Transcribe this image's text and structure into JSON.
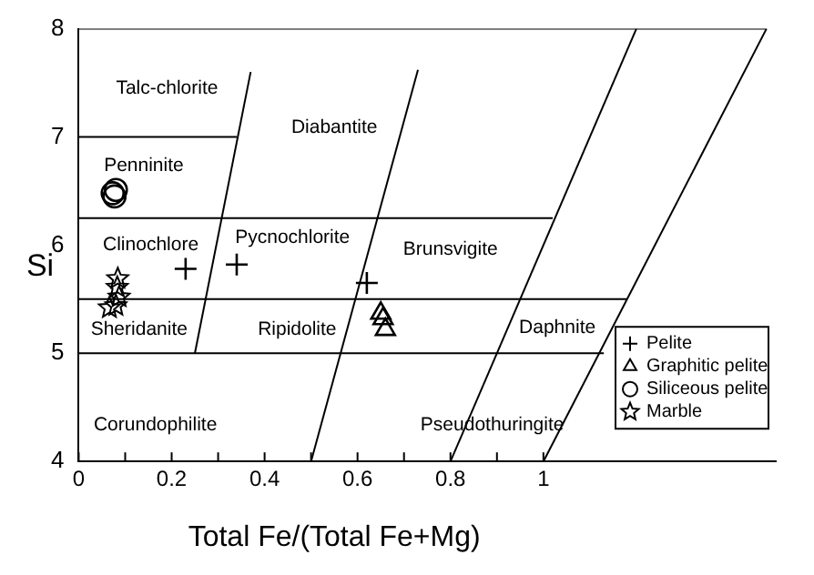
{
  "chart_data": {
    "type": "scatter",
    "xlabel": "Total Fe/(Total Fe+Mg)",
    "ylabel": "Si",
    "xlim": [
      0,
      1.5
    ],
    "ylim": [
      4,
      8
    ],
    "xticks": [
      0,
      {
        "value": 0.1,
        "label": null
      },
      0.2,
      {
        "value": 0.3,
        "label": null
      },
      0.4,
      {
        "value": 0.5,
        "label": null
      },
      0.6,
      {
        "value": 0.7,
        "label": null
      },
      0.8,
      {
        "value": 0.9,
        "label": null
      },
      1
    ],
    "yticks": [
      4,
      5,
      6,
      7,
      8
    ],
    "grid": false,
    "legend": "bottom right",
    "series": [
      {
        "name": "Pelite",
        "marker": "cross",
        "color": "#000000",
        "x": [
          0.23,
          0.34,
          0.62
        ],
        "values": [
          5.78,
          5.82,
          5.65
        ]
      },
      {
        "name": "Graphitic pelite",
        "marker": "triangle",
        "color": "#000000",
        "x": [
          0.65,
          0.655,
          0.66
        ],
        "values": [
          5.37,
          5.32,
          5.22
        ]
      },
      {
        "name": "Siliceous pelite",
        "marker": "circle",
        "color": "#000000",
        "x": [
          0.073,
          0.08,
          0.077
        ],
        "values": [
          6.48,
          6.51,
          6.45
        ]
      },
      {
        "name": "Marble",
        "marker": "star",
        "color": "#000000",
        "x": [
          0.084,
          0.083,
          0.087,
          0.08,
          0.066
        ],
        "values": [
          5.69,
          5.61,
          5.52,
          5.44,
          5.42
        ]
      },
      {
        "type": "line",
        "marker": "none",
        "color": "#000000",
        "x": [
          0,
          1.48
        ],
        "values": [
          8,
          8
        ]
      },
      {
        "type": "line",
        "marker": "none",
        "color": "#000000",
        "x": [
          0,
          0.34
        ],
        "values": [
          7,
          7
        ]
      },
      {
        "type": "line",
        "marker": "none",
        "color": "#000000",
        "x": [
          0,
          1.02
        ],
        "values": [
          6.25,
          6.25
        ]
      },
      {
        "type": "line",
        "marker": "none",
        "color": "#000000",
        "x": [
          0,
          1.18
        ],
        "values": [
          5.5,
          5.5
        ]
      },
      {
        "type": "line",
        "marker": "none",
        "color": "#000000",
        "x": [
          0,
          1.13
        ],
        "values": [
          5,
          5
        ]
      },
      {
        "type": "line",
        "marker": "none",
        "color": "#000000",
        "x": [
          0.25,
          0.37
        ],
        "values": [
          5,
          7.6
        ]
      },
      {
        "type": "line",
        "marker": "none",
        "color": "#000000",
        "x": [
          0.5,
          0.73
        ],
        "values": [
          4,
          7.62
        ]
      },
      {
        "type": "line",
        "marker": "none",
        "color": "#000000",
        "x": [
          0.8,
          1.2
        ],
        "values": [
          4,
          8
        ]
      },
      {
        "type": "line",
        "marker": "none",
        "color": "#000000",
        "x": [
          1,
          1.48
        ],
        "values": [
          4,
          8
        ]
      }
    ],
    "annotations": [
      "Talc-chlorite",
      "Diabantite",
      "Penninite",
      "Clinochlore",
      "Pycnochlorite",
      "Brunsvigite",
      "Sheridanite",
      "Ripidolite",
      "Daphnite",
      "Corundophilite",
      "Pseudothuringite"
    ]
  }
}
